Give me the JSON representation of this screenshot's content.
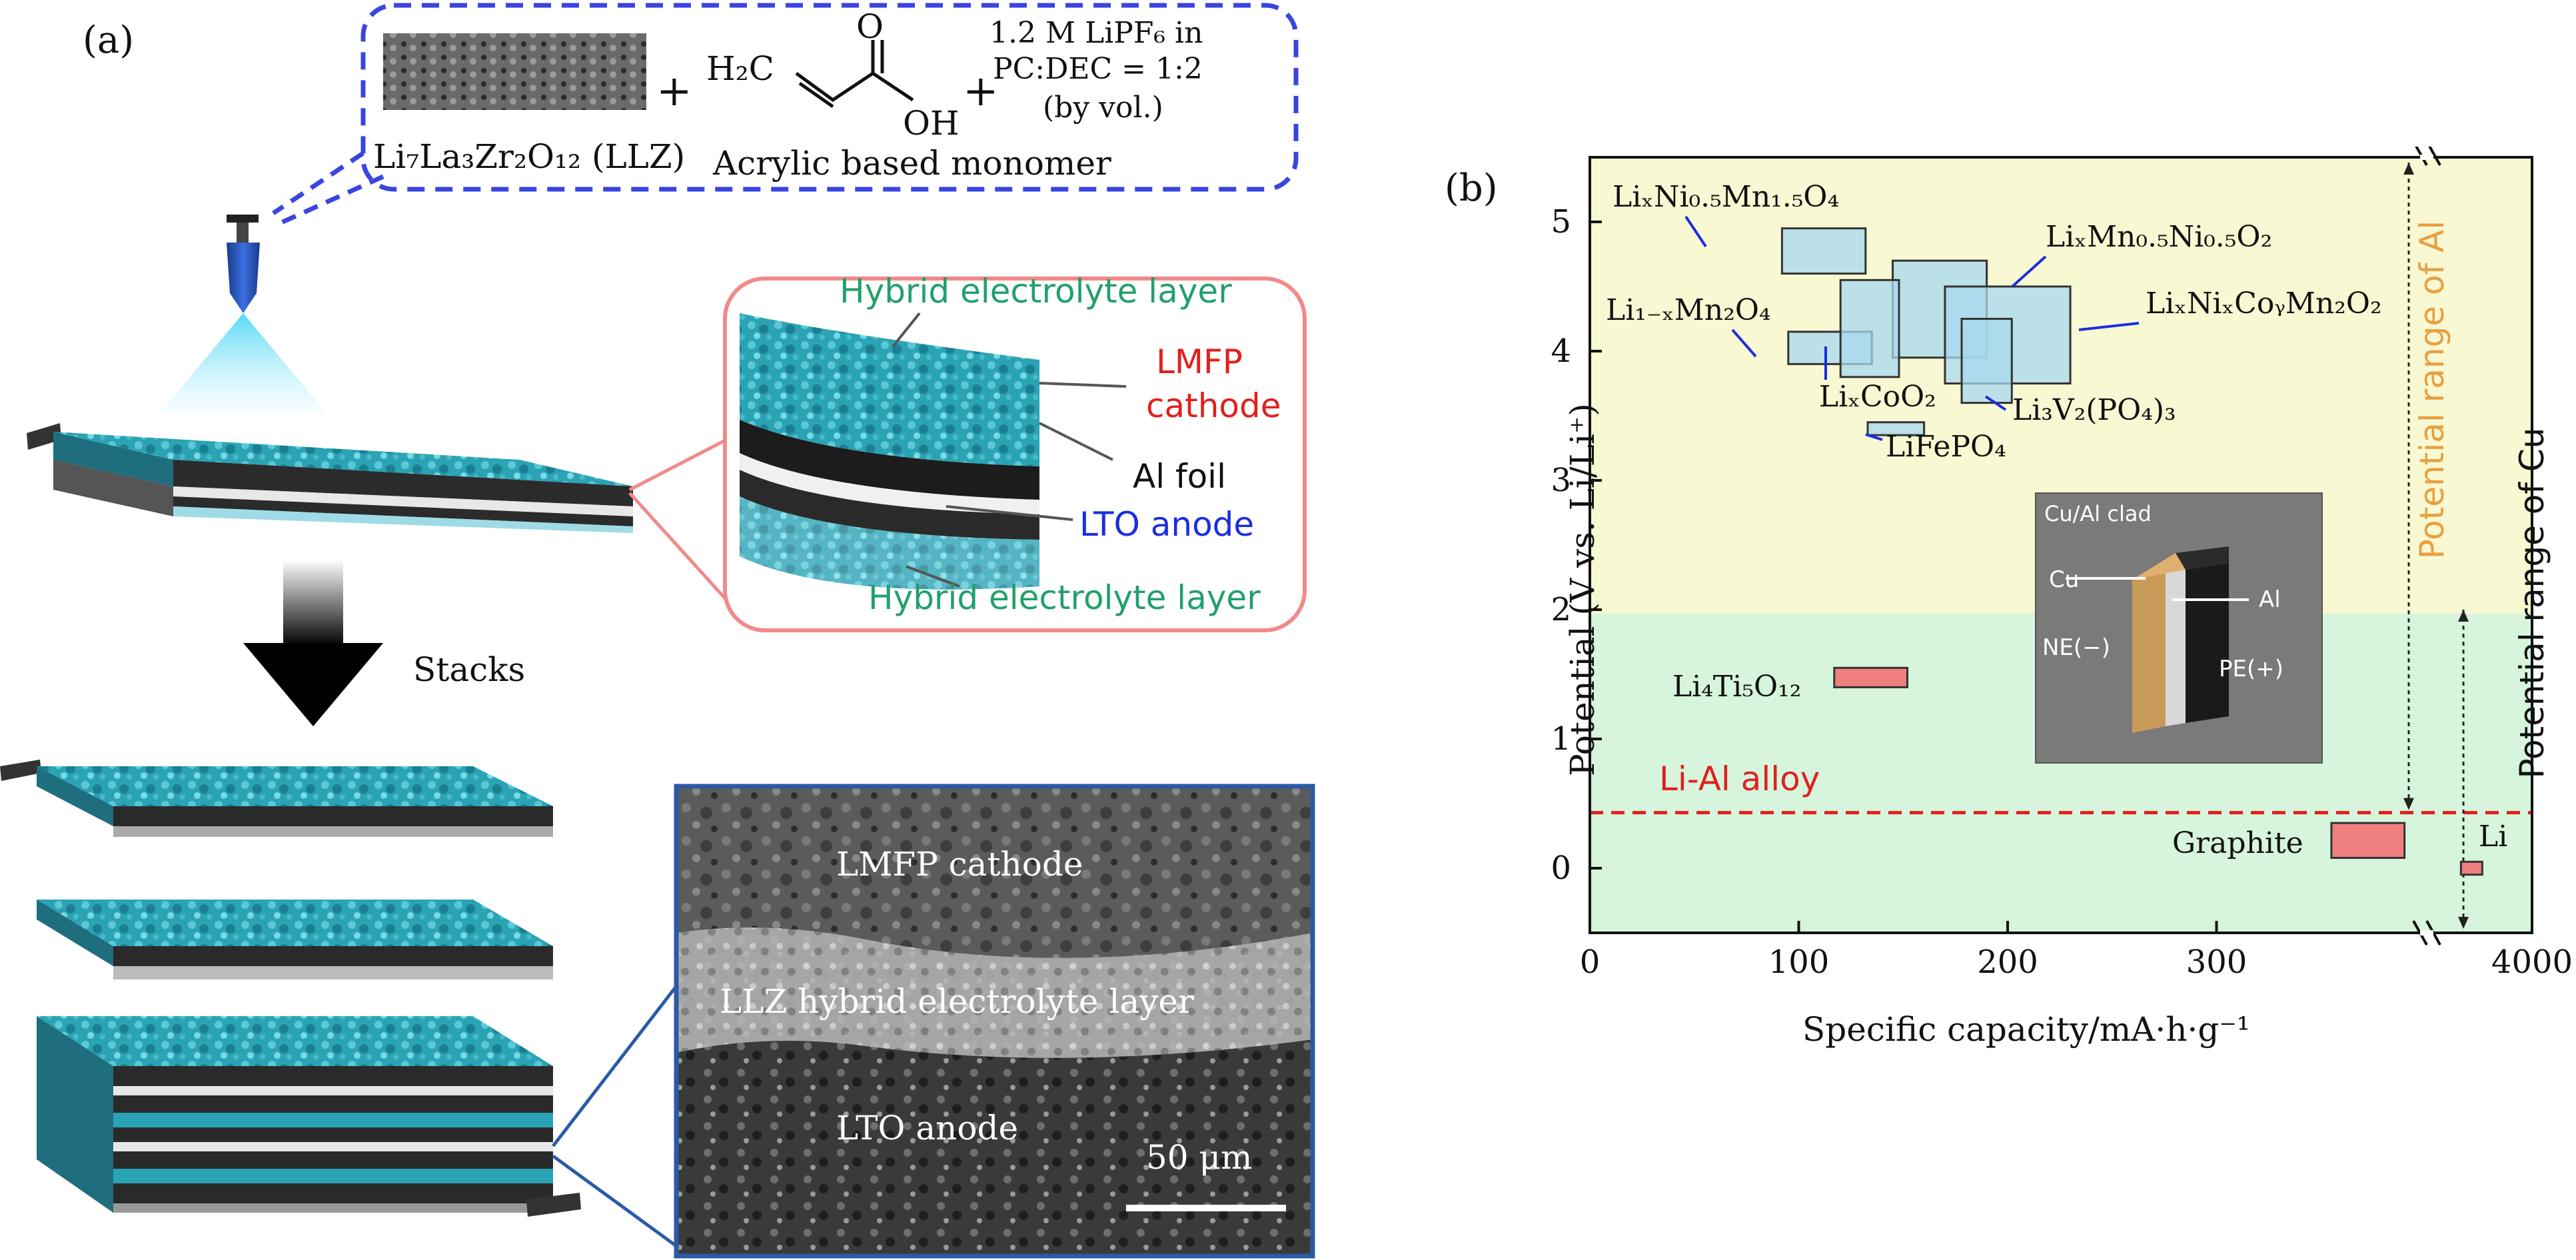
{
  "panel_a": {
    "label": "(a)",
    "materials": {
      "llz": "Li₇La₃Zr₂O₁₂ (LLZ)",
      "plus1": "+",
      "plus2": "+",
      "monomer_atoms": {
        "h2c": "H₂C",
        "o": "O",
        "oh": "OH"
      },
      "monomer": "Acrylic based monomer",
      "electrolyte_l1": "1.2 M LiPF₆ in",
      "electrolyte_l2": "PC:DEC = 1:2",
      "electrolyte_l3": "(by vol.)"
    },
    "layers_callout": {
      "hybrid_top": "Hybrid electrolyte layer",
      "cathode_l1": "LMFP",
      "cathode_l2": "cathode",
      "al_foil": "Al foil",
      "lto": "LTO anode",
      "hybrid_bottom": "Hybrid electrolyte layer"
    },
    "stacks_label": "Stacks",
    "sem": {
      "cathode": "LMFP cathode",
      "electrolyte": "LLZ hybrid electrolyte layer",
      "anode": "LTO anode",
      "scale": "50 μm"
    },
    "colors": {
      "bubble_border": "#3a45e0",
      "callout_border": "#f08a8a",
      "sem_border": "#2a5aa8",
      "teal": "#2aa8b8",
      "green_text": "#22a06b",
      "red_text": "#e0201e",
      "blue_text": "#1a2ee0"
    }
  },
  "panel_b": {
    "label": "(b)",
    "xlabel": "Specific capacity/mA·h·g⁻¹",
    "ylabel": "Potential (V vs. Li/Li⁺)",
    "xticks": [
      "0",
      "100",
      "200",
      "300",
      "4000"
    ],
    "yticks": [
      "0",
      "1",
      "2",
      "3",
      "4",
      "5"
    ],
    "range_al": "Potential range of Al",
    "range_cu": "Potential range of Cu",
    "li_al_alloy": "Li-Al alloy",
    "inset": {
      "title": "Cu/Al clad",
      "cu": "Cu",
      "al": "Al",
      "ne": "NE(−)",
      "pe": "PE(+)"
    },
    "colors": {
      "yellow_region": "#f8f8d2",
      "green_region": "#d6f5dc",
      "blue_box": "#a8d8ee",
      "red_box": "#f07f7f",
      "al_text": "#e8a040",
      "dash_red": "#e02020",
      "leader_blue": "#1a2ee0"
    }
  },
  "chart_data": {
    "type": "scatter",
    "xlabel": "Specific capacity/mA·h·g⁻¹",
    "ylabel": "Potential (V vs. Li/Li⁺)",
    "xlim": [
      0,
      4000
    ],
    "x_axis_break": [
      370,
      3700
    ],
    "ylim": [
      -0.5,
      5.5
    ],
    "grid": false,
    "reference_lines": [
      {
        "label": "Li-Al alloy",
        "y": 0.43,
        "style": "dashed"
      }
    ],
    "regions": [
      {
        "label": "Potential range of Al",
        "y_range": [
          0.43,
          5.5
        ]
      },
      {
        "label": "Potential range of Cu",
        "y_range": [
          -0.5,
          2.0
        ]
      }
    ],
    "series": [
      {
        "name": "LiₓNi₀.₅Mn₁.₅O₄",
        "x_range": [
          92,
          132
        ],
        "y_range": [
          4.6,
          4.95
        ]
      },
      {
        "name": "LiₓMn₀.₅Ni₀.₅O₂",
        "x_range": [
          145,
          190
        ],
        "y_range": [
          3.95,
          4.7
        ]
      },
      {
        "name": "Li₁₋ₓMn₂O₄",
        "x_range": [
          95,
          135
        ],
        "y_range": [
          3.9,
          4.15
        ]
      },
      {
        "name": "LiₓCoO₂",
        "x_range": [
          120,
          148
        ],
        "y_range": [
          3.8,
          4.55
        ]
      },
      {
        "name": "LiₓNiₓCoᵧMn₂O₂",
        "x_range": [
          170,
          230
        ],
        "y_range": [
          3.75,
          4.5
        ]
      },
      {
        "name": "Li₃V₂(PO₄)₃",
        "x_range": [
          178,
          202
        ],
        "y_range": [
          3.6,
          4.25
        ]
      },
      {
        "name": "LiFePO₄",
        "x_range": [
          133,
          160
        ],
        "y_range": [
          3.35,
          3.45
        ]
      },
      {
        "name": "Li₄Ti₅O₁₂",
        "x_range": [
          117,
          152
        ],
        "y_range": [
          1.4,
          1.55
        ]
      },
      {
        "name": "Graphite",
        "x_range": [
          355,
          390
        ],
        "y_range": [
          0.08,
          0.35
        ]
      },
      {
        "name": "Li",
        "x_range": [
          3800,
          3860
        ],
        "y_range": [
          -0.05,
          0.05
        ]
      }
    ]
  }
}
